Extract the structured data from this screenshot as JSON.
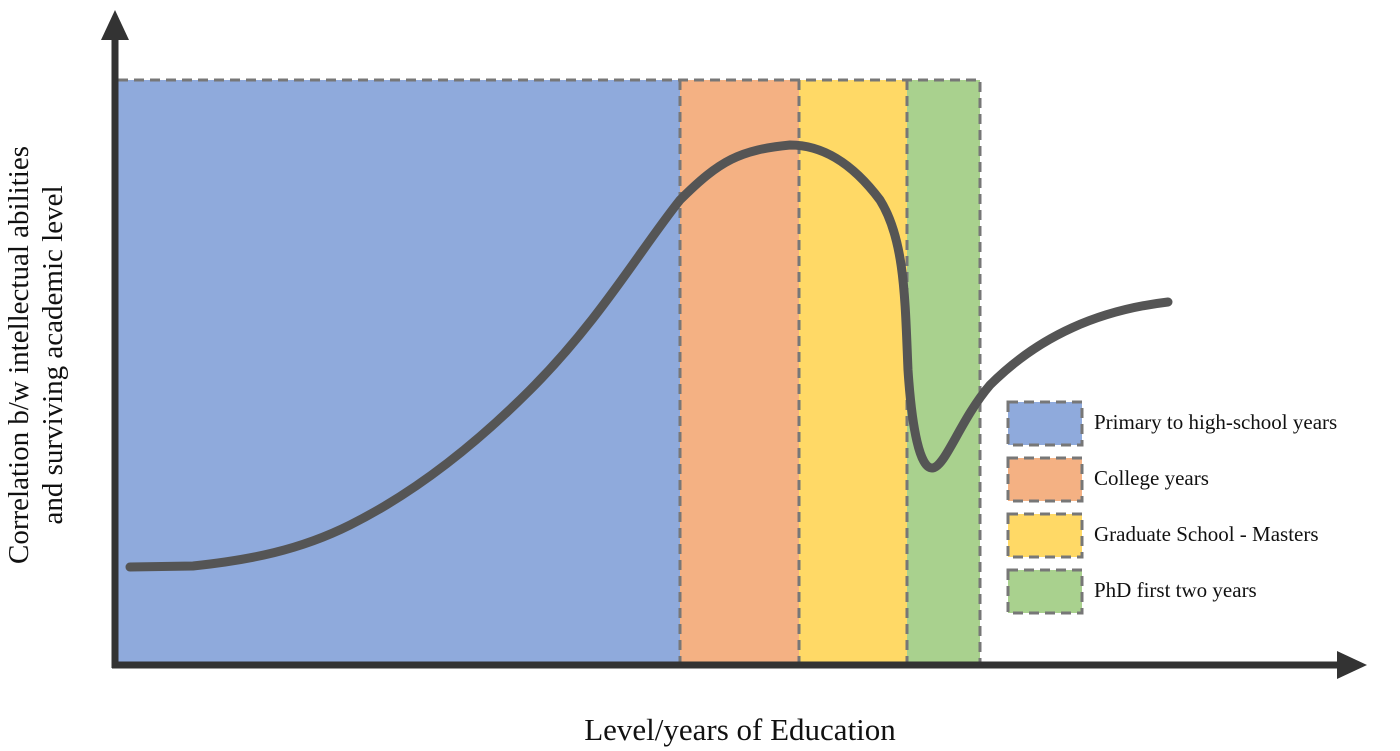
{
  "axes": {
    "y_label": [
      "Correlation b/w intellectual abilities",
      "and surviving academic level"
    ],
    "x_label": "Level/years of Education"
  },
  "legend": {
    "items": [
      {
        "label": "Primary to high-school years"
      },
      {
        "label": "College years"
      },
      {
        "label": "Graduate School - Masters"
      },
      {
        "label": "PhD first two years"
      }
    ]
  }
}
